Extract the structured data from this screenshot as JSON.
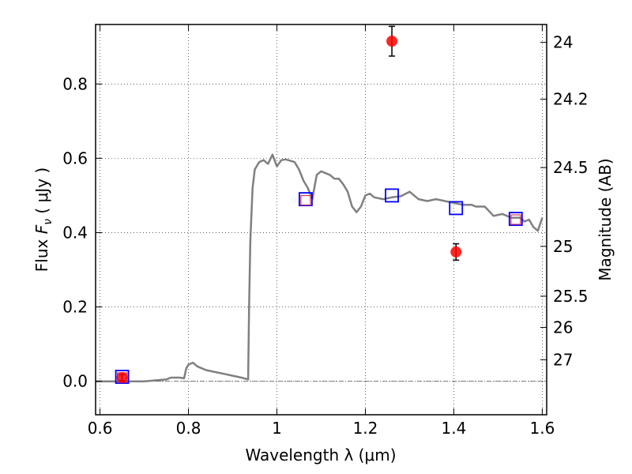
{
  "chart_data": {
    "type": "scatter",
    "xlabel": "Wavelength  λ (μm)",
    "ylabel_prefix": "Flux  ",
    "ylabel_symbol": "F",
    "ylabel_subscript": "ν",
    "ylabel_unit": "  ( μJy )",
    "y2label": "Magnitude (AB)",
    "xlim": [
      0.59,
      1.61
    ],
    "ylim": [
      -0.09,
      0.96
    ],
    "x_ticks": [
      0.6,
      0.8,
      1.0,
      1.2,
      1.4,
      1.6
    ],
    "x_tick_labels": [
      "0.6",
      "0.8",
      "1",
      "1.2",
      "1.4",
      "1.6"
    ],
    "y_ticks": [
      0.0,
      0.2,
      0.4,
      0.6,
      0.8
    ],
    "y_tick_labels": [
      "0.0",
      "0.2",
      "0.4",
      "0.6",
      "0.8"
    ],
    "mag_ticks": [
      {
        "label": "24",
        "flux": 0.912
      },
      {
        "label": "24.2",
        "flux": 0.759
      },
      {
        "label": "24.5",
        "flux": 0.575
      },
      {
        "label": "25",
        "flux": 0.363
      },
      {
        "label": "25.5",
        "flux": 0.229
      },
      {
        "label": "26",
        "flux": 0.145
      },
      {
        "label": "27",
        "flux": 0.058
      }
    ],
    "grid": true,
    "zero_line": true,
    "colors": {
      "model": "#808080",
      "observed": "#ff0000",
      "model_box": "#0000ff",
      "filter_box": "#cc3366",
      "errorbar": "#000000",
      "zero_line": "#555555"
    },
    "series": [
      {
        "kind": "model_spectrum",
        "x": [
          0.59,
          0.7,
          0.73,
          0.75,
          0.76,
          0.78,
          0.79,
          0.795,
          0.8,
          0.81,
          0.82,
          0.83,
          0.84,
          0.86,
          0.88,
          0.9,
          0.92,
          0.935,
          0.937,
          0.94,
          0.945,
          0.95,
          0.96,
          0.97,
          0.98,
          0.99,
          1.0,
          1.01,
          1.02,
          1.04,
          1.05,
          1.06,
          1.07,
          1.08,
          1.09,
          1.1,
          1.11,
          1.12,
          1.13,
          1.14,
          1.15,
          1.16,
          1.17,
          1.18,
          1.19,
          1.2,
          1.21,
          1.22,
          1.24,
          1.26,
          1.28,
          1.3,
          1.32,
          1.34,
          1.36,
          1.38,
          1.4,
          1.42,
          1.44,
          1.45,
          1.47,
          1.49,
          1.51,
          1.53,
          1.55,
          1.56,
          1.57,
          1.58,
          1.59,
          1.6
        ],
        "y": [
          0.0,
          0.0,
          0.003,
          0.005,
          0.01,
          0.01,
          0.008,
          0.035,
          0.045,
          0.05,
          0.04,
          0.035,
          0.03,
          0.025,
          0.02,
          0.015,
          0.01,
          0.005,
          0.2,
          0.38,
          0.52,
          0.57,
          0.59,
          0.595,
          0.585,
          0.61,
          0.578,
          0.595,
          0.597,
          0.59,
          0.57,
          0.54,
          0.52,
          0.49,
          0.555,
          0.565,
          0.56,
          0.555,
          0.545,
          0.545,
          0.53,
          0.51,
          0.47,
          0.455,
          0.47,
          0.5,
          0.505,
          0.495,
          0.49,
          0.495,
          0.498,
          0.51,
          0.49,
          0.485,
          0.49,
          0.485,
          0.48,
          0.475,
          0.475,
          0.47,
          0.47,
          0.445,
          0.45,
          0.44,
          0.44,
          0.43,
          0.435,
          0.415,
          0.405,
          0.44
        ]
      },
      {
        "kind": "model_photometry",
        "x": [
          0.65,
          1.065,
          1.26,
          1.405,
          1.54
        ],
        "y": [
          0.012,
          0.49,
          0.5,
          0.466,
          0.437
        ]
      },
      {
        "kind": "filter_model",
        "x": [
          0.65,
          1.065,
          1.54
        ],
        "y": [
          0.01,
          0.487,
          0.435
        ]
      },
      {
        "kind": "observed",
        "x": [
          0.65,
          1.26,
          1.405
        ],
        "y": [
          0.01,
          0.915,
          0.348
        ],
        "yerr": [
          0.008,
          0.04,
          0.022
        ]
      }
    ]
  }
}
